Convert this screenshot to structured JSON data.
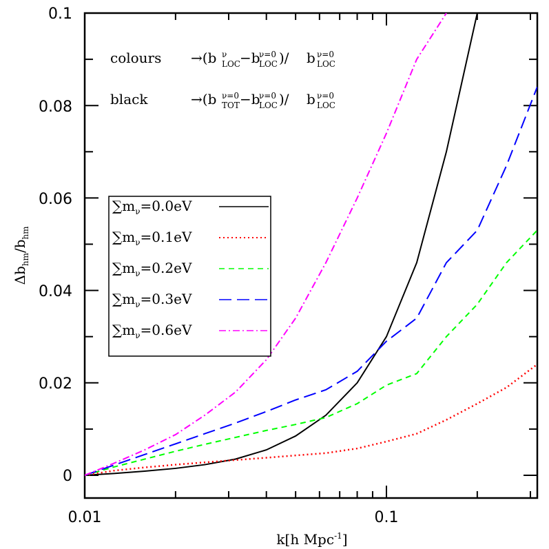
{
  "chart_data": {
    "type": "line",
    "title": "",
    "xlabel": "k[h Mpc-1]",
    "ylabel": "Δb_hm/b_hm",
    "xscale": "log",
    "xlim": [
      0.01,
      0.316
    ],
    "ylim": [
      0,
      0.1
    ],
    "x_tick_labels": [
      "0.01",
      "0.1"
    ],
    "y_tick_labels": [
      "0",
      "0.02",
      "0.04",
      "0.06",
      "0.08",
      "0.1"
    ],
    "grid": false,
    "legend_position": "center-left",
    "x": [
      0.01,
      0.0125,
      0.0158,
      0.02,
      0.025,
      0.0316,
      0.04,
      0.05,
      0.063,
      0.08,
      0.1,
      0.126,
      0.158,
      0.2,
      0.25,
      0.316
    ],
    "series": [
      {
        "name": "∑mν=0.0eV",
        "color": "#000000",
        "dash": "solid",
        "values": [
          0.0,
          0.0004,
          0.0009,
          0.0015,
          0.0023,
          0.0035,
          0.0055,
          0.0085,
          0.013,
          0.02,
          0.03,
          0.046,
          0.07,
          0.1,
          null,
          null
        ]
      },
      {
        "name": "∑mν=0.1eV",
        "color": "#ff0000",
        "dash": "dotted",
        "values": [
          0.0,
          0.001,
          0.0017,
          0.0023,
          0.0028,
          0.0033,
          0.0038,
          0.0043,
          0.0048,
          0.0058,
          0.0073,
          0.009,
          0.012,
          0.0155,
          0.019,
          0.024
        ]
      },
      {
        "name": "∑mν=0.2eV",
        "color": "#00ff00",
        "dash": "dashed",
        "values": [
          0.0,
          0.0018,
          0.0035,
          0.0052,
          0.0067,
          0.0082,
          0.0097,
          0.011,
          0.0125,
          0.0155,
          0.0195,
          0.022,
          0.03,
          0.037,
          0.046,
          0.053
        ]
      },
      {
        "name": "∑mν=0.3eV",
        "color": "#0000ff",
        "dash": "long-dash",
        "values": [
          0.0,
          0.0022,
          0.0045,
          0.0068,
          0.009,
          0.0113,
          0.0138,
          0.0163,
          0.0185,
          0.0225,
          0.029,
          0.034,
          0.046,
          0.053,
          0.067,
          0.084
        ]
      },
      {
        "name": "∑mν=0.6eV",
        "color": "#ff00ff",
        "dash": "dash-dot",
        "values": [
          0.0,
          0.0026,
          0.0055,
          0.0088,
          0.013,
          0.018,
          0.025,
          0.034,
          0.046,
          0.06,
          0.074,
          0.09,
          0.1,
          null,
          null,
          null
        ]
      }
    ],
    "annotations": [
      "colours →(b_LOC^ν − b_LOC^{ν=0})/b_LOC^{ν=0}",
      "black →(b_TOT^{ν=0} − b_LOC^{ν=0})/b_LOC^{ν=0}"
    ]
  },
  "labels": {
    "xlabel_main": "k[h Mpc",
    "xlabel_sup": "-1",
    "xlabel_close": "]",
    "ylabel_delta": "Δb",
    "ylabel_sub": "hm",
    "ylabel_slash": "/b",
    "ylabel_sub2": "hm",
    "x_ticks": [
      "0.01",
      "0.1"
    ],
    "y_ticks": [
      "0",
      "0.02",
      "0.04",
      "0.06",
      "0.08",
      "0.1"
    ],
    "annot1_word": "colours",
    "annot2_word": "black",
    "arrow": "→",
    "b": "b",
    "sup_nu": "ν",
    "sup_nu0": "ν=0",
    "sub_loc": "LOC",
    "sub_tot": "TOT",
    "minus": "−",
    "open_paren": "(",
    "close_slash": ")/",
    "legend": [
      {
        "label": "=0.0eV"
      },
      {
        "label": "=0.1eV"
      },
      {
        "label": "=0.2eV"
      },
      {
        "label": "=0.3eV"
      },
      {
        "label": "=0.6eV"
      }
    ],
    "sum_symbol": "∑m",
    "nu": "ν"
  }
}
